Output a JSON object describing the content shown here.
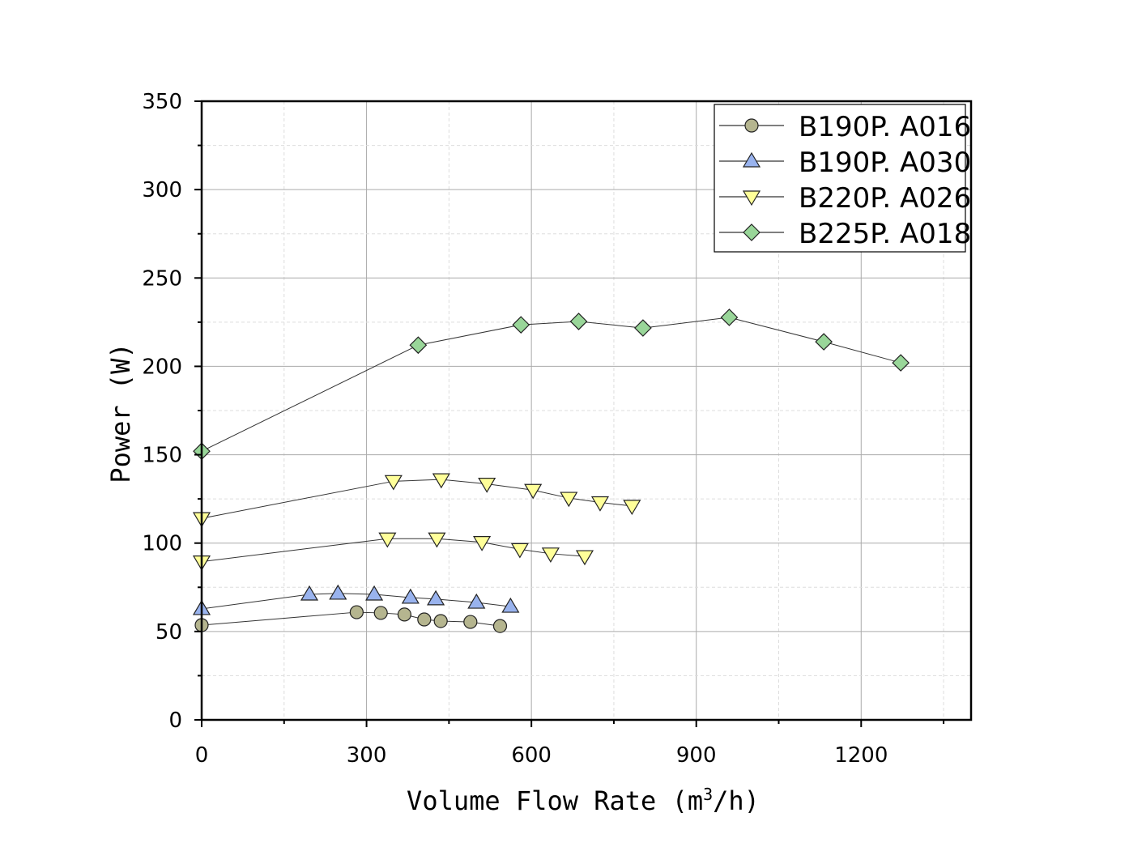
{
  "chart_data": {
    "type": "line",
    "title": "",
    "xlabel": "Volume Flow Rate (m³/h)",
    "xlabel_parts": {
      "main": "Volume Flow Rate (m",
      "sup": "3",
      "end": "/h)"
    },
    "ylabel": "Power (W)",
    "xlim": [
      0,
      1400
    ],
    "ylim": [
      0,
      350
    ],
    "xticks": [
      0,
      300,
      600,
      900,
      1200
    ],
    "xtick_labels": [
      "0",
      "300",
      "600",
      "900",
      "1200"
    ],
    "yticks": [
      0,
      50,
      100,
      150,
      200,
      250,
      300,
      350
    ],
    "ytick_labels": [
      "0",
      "50",
      "100",
      "150",
      "200",
      "250",
      "300",
      "350"
    ],
    "grid": true,
    "legend_position": "top-right",
    "series": [
      {
        "name": "B190P. A016",
        "marker": "circle",
        "color": "#b5b58f",
        "legend": true,
        "x": [
          0,
          282,
          326,
          369,
          405,
          435,
          489,
          543
        ],
        "y": [
          53.6,
          60.9,
          60.5,
          59.6,
          56.8,
          55.9,
          55.4,
          53.1
        ]
      },
      {
        "name": "B190P. A030",
        "marker": "triangle-up",
        "color": "#99b3ee",
        "legend": true,
        "x": [
          0,
          196,
          248,
          314,
          380,
          426,
          500,
          562
        ],
        "y": [
          62.8,
          71.0,
          71.5,
          71.0,
          69.2,
          68.3,
          66.4,
          64.1
        ]
      },
      {
        "name": "B220P. A026",
        "marker": "triangle-down",
        "color": "#ffff99",
        "legend": true,
        "x": [
          0,
          338,
          428,
          510,
          579,
          635,
          697
        ],
        "y": [
          89.5,
          102.5,
          102.5,
          100.5,
          96.5,
          94.0,
          92.5
        ]
      },
      {
        "name": "B220P. A026",
        "marker": "triangle-down",
        "color": "#ffff99",
        "legend": false,
        "x": [
          0,
          349,
          436,
          519,
          603,
          668,
          725,
          783
        ],
        "y": [
          114,
          135,
          136,
          133.5,
          130,
          125.5,
          123,
          121
        ]
      },
      {
        "name": "B225P. A018",
        "marker": "diamond",
        "color": "#99d699",
        "legend": true,
        "x": [
          0,
          394,
          581,
          686,
          803,
          960,
          1132,
          1272
        ],
        "y": [
          152,
          212,
          223.5,
          225.4,
          221.7,
          227.7,
          213.9,
          202
        ]
      }
    ]
  }
}
